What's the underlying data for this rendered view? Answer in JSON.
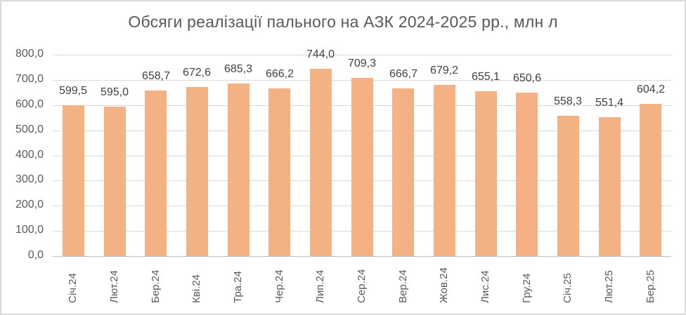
{
  "chart_data": {
    "type": "bar",
    "title": "Обсяги реалізації пального на АЗК 2024-2025 рр., млн л",
    "xlabel": "",
    "ylabel": "",
    "categories": [
      "Січ.24",
      "Лют.24",
      "Бер.24",
      "Кві.24",
      "Тра.24",
      "Чер.24",
      "Лип.24",
      "Сер.24",
      "Вер.24",
      "Жов.24",
      "Лис.24",
      "Гру.24",
      "Січ.25",
      "Лют.25",
      "Бер.25"
    ],
    "values": [
      599.5,
      595.0,
      658.7,
      672.6,
      685.3,
      666.2,
      744.0,
      709.3,
      666.7,
      679.2,
      655.1,
      650.6,
      558.3,
      551.4,
      604.2
    ],
    "data_labels": [
      "599,5",
      "595,0",
      "658,7",
      "672,6",
      "685,3",
      "666,2",
      "744,0",
      "709,3",
      "666,7",
      "679,2",
      "655,1",
      "650,6",
      "558,3",
      "551,4",
      "604,2"
    ],
    "ylim": [
      0,
      800
    ],
    "yticks": [
      "0,0",
      "100,0",
      "200,0",
      "300,0",
      "400,0",
      "500,0",
      "600,0",
      "700,0",
      "800,0"
    ],
    "grid": true,
    "legend": "none",
    "bar_color": "#f4b183"
  }
}
